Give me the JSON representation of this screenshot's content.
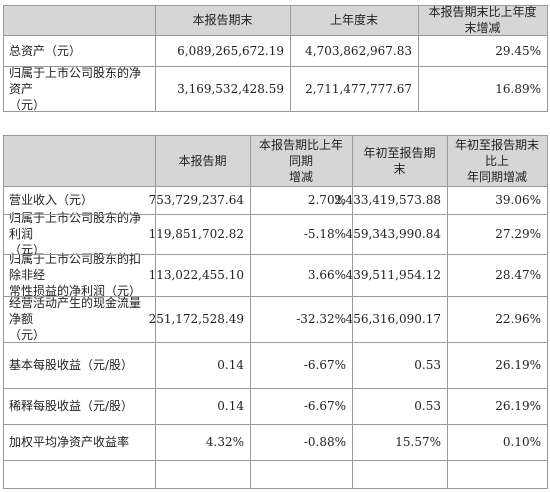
{
  "part1": {
    "headers": [
      "本报告期末",
      "上年度末",
      "本报告期末比上年度末增减"
    ],
    "rows": [
      {
        "label": [
          "总资产（元）"
        ],
        "values": [
          "6,089,265,672.19",
          "4,703,862,967.83",
          "29.45%"
        ]
      },
      {
        "label": [
          "归属于上市公司股东的净资产",
          "（元）"
        ],
        "values": [
          "3,169,532,428.59",
          "2,711,477,777.67",
          "16.89%"
        ]
      }
    ]
  },
  "part2": {
    "headers": [
      [
        "本报告期"
      ],
      [
        "本报告期比上年同期",
        "增减"
      ],
      [
        "年初至报告期末"
      ],
      [
        "年初至报告期末比上",
        "年同期增减"
      ]
    ],
    "rows": [
      {
        "label": [
          "营业收入（元）"
        ],
        "values": [
          "753,729,237.64",
          "2.70%",
          "2,433,419,573.88",
          "39.06%"
        ]
      },
      {
        "label": [
          "归属于上市公司股东的净利润",
          "（元）"
        ],
        "values": [
          "119,851,702.82",
          "-5.18%",
          "459,343,990.84",
          "27.29%"
        ]
      },
      {
        "label": [
          "归属于上市公司股东的扣除非经",
          "常性损益的净利润（元）"
        ],
        "values": [
          "113,022,455.10",
          "3.66%",
          "439,511,954.12",
          "28.47%"
        ]
      },
      {
        "label": [
          "经营活动产生的现金流量净额",
          "（元）"
        ],
        "values": [
          "251,172,528.49",
          "-32.32%",
          "456,316,090.17",
          "22.96%"
        ]
      },
      {
        "label": [
          "基本每股收益（元/股）"
        ],
        "values": [
          "0.14",
          "-6.67%",
          "0.53",
          "26.19%"
        ]
      },
      {
        "label": [
          "稀释每股收益（元/股）"
        ],
        "values": [
          "0.14",
          "-6.67%",
          "0.53",
          "26.19%"
        ]
      },
      {
        "label": [
          "加权平均净资产收益率"
        ],
        "values": [
          "4.32%",
          "-0.88%",
          "15.57%",
          "0.10%"
        ]
      }
    ]
  }
}
